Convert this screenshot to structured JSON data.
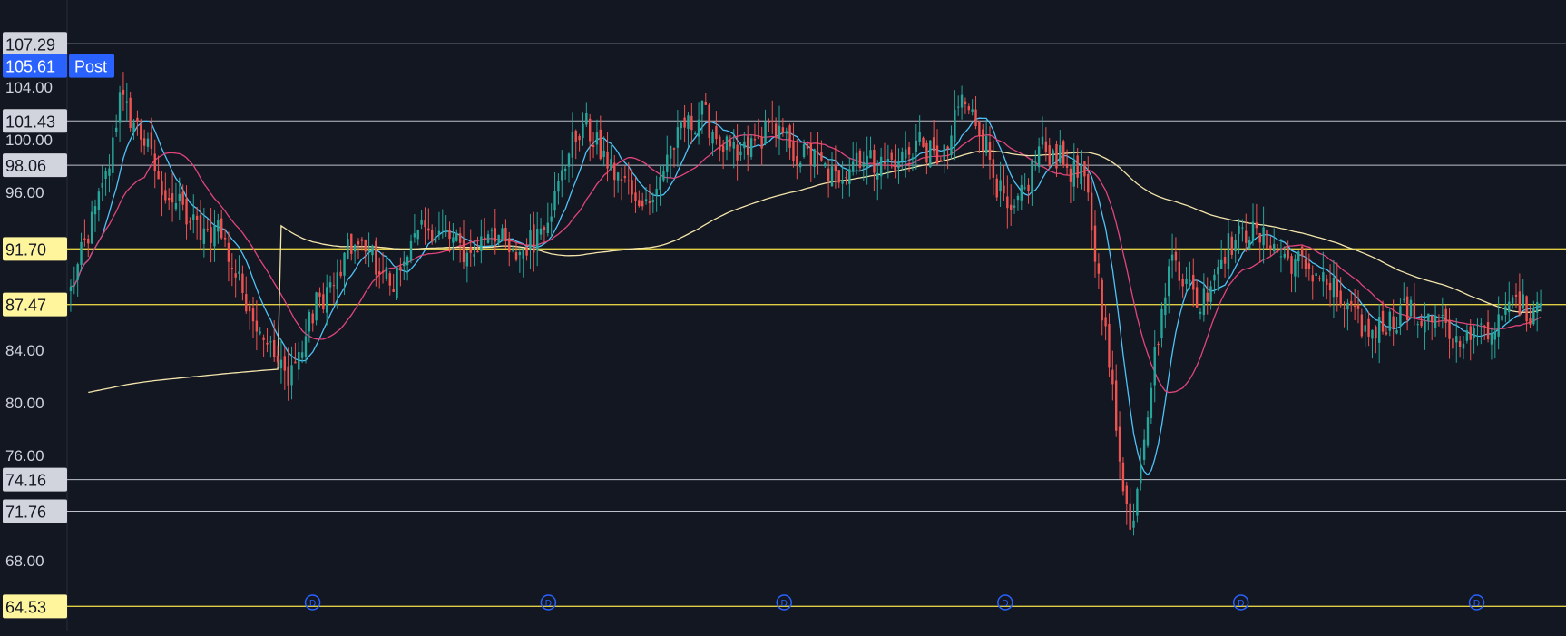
{
  "chart_data": {
    "type": "candlestick",
    "y_range": [
      62.5,
      110.0
    ],
    "axis_ticks": [
      "68.00",
      "76.00",
      "80.00",
      "84.00",
      "96.00",
      "100.00",
      "104.00"
    ],
    "horizontal_levels": [
      {
        "value": 107.29,
        "label": "107.29",
        "color": "#d1d4dc",
        "label_bg": "#d1d4dc"
      },
      {
        "value": 101.43,
        "label": "101.43",
        "color": "#d1d4dc",
        "label_bg": "#d1d4dc"
      },
      {
        "value": 98.06,
        "label": "98.06",
        "color": "#d1d4dc",
        "label_bg": "#d1d4dc"
      },
      {
        "value": 91.7,
        "label": "91.70",
        "color": "#f7e34a",
        "label_bg": "#fff59d"
      },
      {
        "value": 87.47,
        "label": "87.47",
        "color": "#f7e34a",
        "label_bg": "#fff59d"
      },
      {
        "value": 74.16,
        "label": "74.16",
        "color": "#d1d4dc",
        "label_bg": "#d1d4dc"
      },
      {
        "value": 71.76,
        "label": "71.76",
        "color": "#d1d4dc",
        "label_bg": "#d1d4dc"
      },
      {
        "value": 64.53,
        "label": "64.53",
        "color": "#f7e34a",
        "label_bg": "#fff59d"
      }
    ],
    "current_price": {
      "value": 105.61,
      "label": "105.61",
      "session_label": "Post",
      "color": "#2962ff"
    },
    "dividend_marker": "D",
    "dividend_marker_positions": [
      0.19,
      0.35,
      0.51,
      0.66,
      0.82,
      0.98
    ],
    "bar_count": 420,
    "closes_anchor": [
      [
        0,
        88.5
      ],
      [
        4,
        92.0
      ],
      [
        10,
        97.0
      ],
      [
        14,
        103.0
      ],
      [
        20,
        100.5
      ],
      [
        26,
        96.5
      ],
      [
        32,
        94.5
      ],
      [
        38,
        92.5
      ],
      [
        42,
        93.5
      ],
      [
        48,
        89.0
      ],
      [
        53,
        86.5
      ],
      [
        57,
        84.0
      ],
      [
        61,
        82.0
      ],
      [
        65,
        83.5
      ],
      [
        70,
        87.5
      ],
      [
        76,
        89.5
      ],
      [
        80,
        92.0
      ],
      [
        86,
        91.0
      ],
      [
        92,
        89.0
      ],
      [
        96,
        91.5
      ],
      [
        102,
        93.5
      ],
      [
        108,
        92.5
      ],
      [
        114,
        91.0
      ],
      [
        120,
        93.5
      ],
      [
        126,
        91.0
      ],
      [
        132,
        92.5
      ],
      [
        138,
        95.5
      ],
      [
        142,
        99.0
      ],
      [
        146,
        101.5
      ],
      [
        150,
        99.5
      ],
      [
        156,
        97.0
      ],
      [
        162,
        96.0
      ],
      [
        166,
        95.0
      ],
      [
        170,
        99.0
      ],
      [
        176,
        101.0
      ],
      [
        180,
        102.0
      ],
      [
        186,
        99.5
      ],
      [
        190,
        98.5
      ],
      [
        196,
        100.0
      ],
      [
        200,
        101.0
      ],
      [
        206,
        99.0
      ],
      [
        212,
        98.5
      ],
      [
        218,
        97.0
      ],
      [
        224,
        99.0
      ],
      [
        230,
        98.0
      ],
      [
        236,
        98.5
      ],
      [
        242,
        100.0
      ],
      [
        246,
        98.5
      ],
      [
        250,
        99.5
      ],
      [
        254,
        103.0
      ],
      [
        258,
        101.5
      ],
      [
        261,
        99.5
      ],
      [
        264,
        96.5
      ],
      [
        268,
        94.0
      ],
      [
        272,
        96.0
      ],
      [
        276,
        99.5
      ],
      [
        282,
        98.5
      ],
      [
        288,
        97.0
      ],
      [
        294,
        94.5
      ],
      [
        298,
        92.0
      ],
      [
        302,
        90.0
      ],
      [
        306,
        91.5
      ],
      [
        312,
        93.0
      ],
      [
        318,
        89.0
      ],
      [
        322,
        87.5
      ],
      [
        326,
        90.0
      ],
      [
        330,
        92.0
      ],
      [
        336,
        93.0
      ],
      [
        342,
        92.0
      ],
      [
        346,
        91.0
      ],
      [
        352,
        90.5
      ],
      [
        356,
        89.5
      ],
      [
        360,
        88.5
      ],
      [
        365,
        86.5
      ],
      [
        370,
        85.5
      ],
      [
        375,
        86.0
      ],
      [
        380,
        87.0
      ],
      [
        385,
        86.5
      ],
      [
        390,
        86.0
      ],
      [
        394,
        85.0
      ],
      [
        398,
        84.5
      ],
      [
        402,
        85.5
      ],
      [
        405,
        86.0
      ],
      [
        408,
        87.5
      ],
      [
        412,
        88.0
      ],
      [
        416,
        87.0
      ],
      [
        419,
        88.5
      ]
    ],
    "note_visible_candles": "Candles drawn by script from visible overall trend."
  }
}
